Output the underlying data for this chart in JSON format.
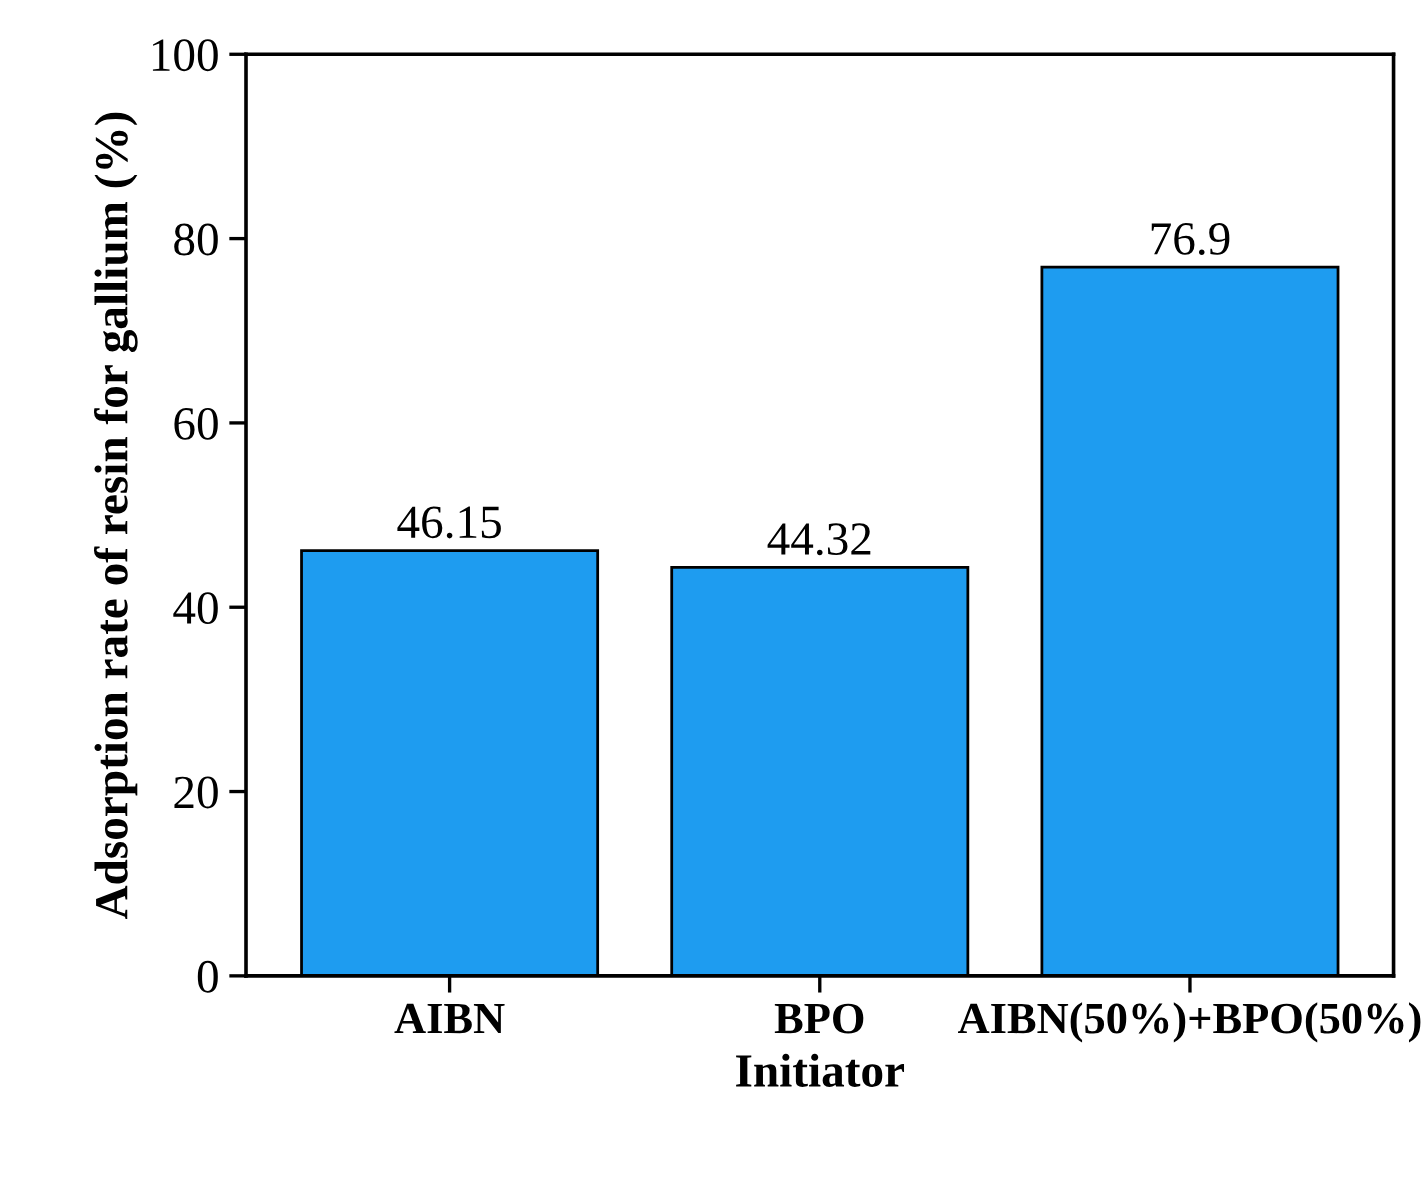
{
  "chart_data": {
    "type": "bar",
    "xlabel": "Initiator",
    "ylabel": "Adsorption rate of resin for gallium (%)",
    "categories": [
      "AIBN",
      "BPO",
      "AIBN(50%)+BPO(50%)"
    ],
    "values": [
      46.15,
      44.32,
      76.9
    ],
    "color": "#1e9cf0",
    "ylim": [
      0,
      100
    ],
    "yticks": [
      0,
      20,
      40,
      60,
      80,
      100
    ],
    "grid": false,
    "data_labels": true
  }
}
